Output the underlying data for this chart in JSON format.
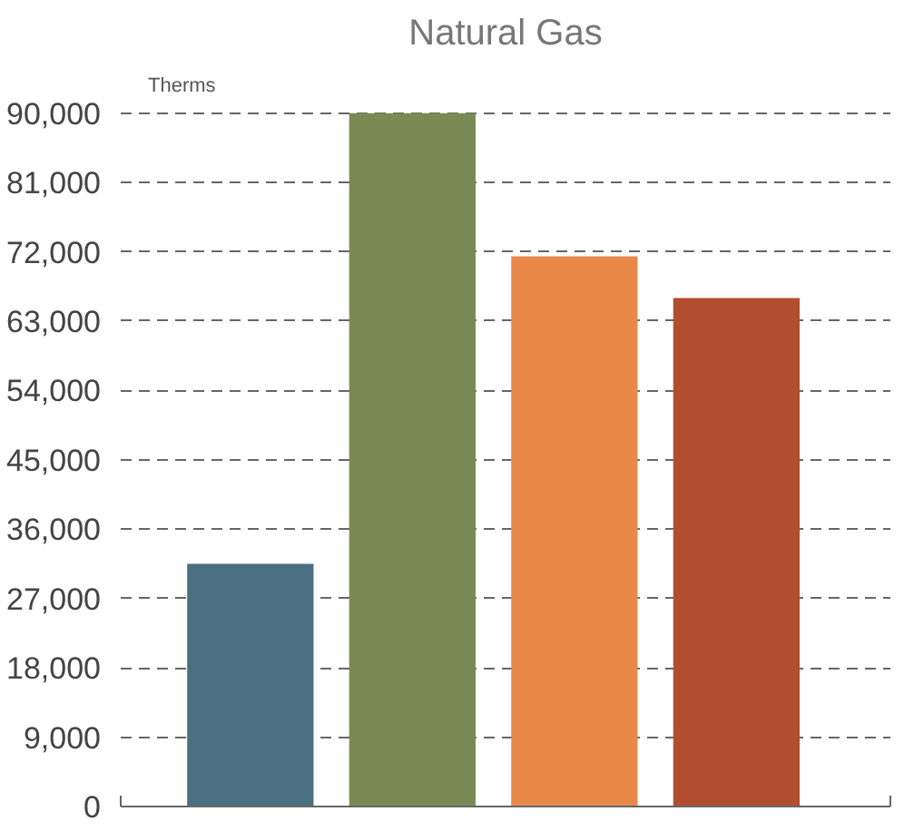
{
  "chart_data": {
    "type": "bar",
    "title": "Natural Gas",
    "ylabel": "Therms",
    "categories": [
      null,
      null,
      null,
      null
    ],
    "values": [
      31500,
      90000,
      71400,
      66000
    ],
    "colors": [
      "#4a6e82",
      "#7a8a55",
      "#e8894a",
      "#b04e2e"
    ],
    "ylim": [
      0,
      90000
    ],
    "yticks": [
      {
        "value": 0,
        "label": "0"
      },
      {
        "value": 9000,
        "label": "9,000"
      },
      {
        "value": 18000,
        "label": "18,000"
      },
      {
        "value": 27000,
        "label": "27,000"
      },
      {
        "value": 36000,
        "label": "36,000"
      },
      {
        "value": 45000,
        "label": "45,000"
      },
      {
        "value": 54000,
        "label": "54,000"
      },
      {
        "value": 63000,
        "label": "63,000"
      },
      {
        "value": 72000,
        "label": "72,000"
      },
      {
        "value": 81000,
        "label": "81,000"
      },
      {
        "value": 90000,
        "label": "90,000"
      }
    ],
    "grid": "y",
    "line_style": "dashed"
  }
}
